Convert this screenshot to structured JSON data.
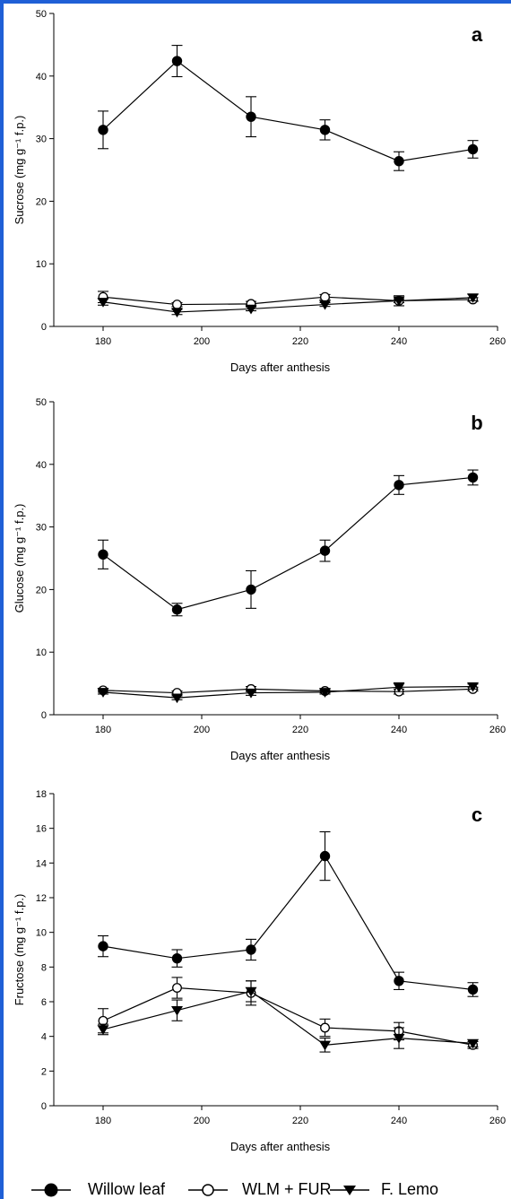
{
  "colors": {
    "frame": "#1f5fd6",
    "ink": "#000000",
    "background": "#ffffff"
  },
  "legend": [
    "Willow leaf",
    "WLM + FUR",
    "F. Lemo"
  ],
  "chart_data": [
    {
      "type": "line",
      "panel": "a",
      "xlabel": "Days after anthesis",
      "ylabel": "Sucrose (mg g⁻¹ f.p.)",
      "xlim": [
        170,
        260
      ],
      "ylim": [
        0,
        50
      ],
      "xticks": [
        180,
        200,
        220,
        240,
        260
      ],
      "yticks": [
        0,
        10,
        20,
        30,
        40,
        50
      ],
      "x": [
        180,
        195,
        210,
        225,
        240,
        255
      ],
      "series": [
        {
          "name": "Willow leaf",
          "marker": "filled-circle",
          "values": [
            31.4,
            42.4,
            33.5,
            31.4,
            26.4,
            28.3
          ],
          "errors": [
            3.0,
            2.5,
            3.2,
            1.6,
            1.5,
            1.4
          ]
        },
        {
          "name": "WLM + FUR",
          "marker": "open-circle",
          "values": [
            4.7,
            3.5,
            3.6,
            4.7,
            4.1,
            4.3
          ],
          "errors": [
            0.9,
            0.3,
            0.4,
            0.4,
            0.3,
            0.3
          ]
        },
        {
          "name": "F. Lemo",
          "marker": "filled-triangle-down",
          "values": [
            3.9,
            2.3,
            2.8,
            3.5,
            4.1,
            4.6
          ],
          "errors": [
            0.5,
            0.4,
            0.3,
            0.3,
            0.8,
            0.5
          ]
        }
      ]
    },
    {
      "type": "line",
      "panel": "b",
      "xlabel": "Days after anthesis",
      "ylabel": "Glucose (mg g⁻¹ f.p.)",
      "xlim": [
        170,
        260
      ],
      "ylim": [
        0,
        50
      ],
      "xticks": [
        180,
        200,
        220,
        240,
        260
      ],
      "yticks": [
        0,
        10,
        20,
        30,
        40,
        50
      ],
      "x": [
        180,
        195,
        210,
        225,
        240,
        255
      ],
      "series": [
        {
          "name": "Willow leaf",
          "marker": "filled-circle",
          "values": [
            25.6,
            16.8,
            20.0,
            26.2,
            36.7,
            37.9
          ],
          "errors": [
            2.3,
            1.0,
            3.0,
            1.7,
            1.5,
            1.2
          ]
        },
        {
          "name": "WLM + FUR",
          "marker": "open-circle",
          "values": [
            3.9,
            3.5,
            4.1,
            3.8,
            3.7,
            4.1
          ],
          "errors": [
            0.3,
            0.3,
            0.4,
            0.3,
            0.4,
            0.3
          ]
        },
        {
          "name": "F. Lemo",
          "marker": "filled-triangle-down",
          "values": [
            3.6,
            2.7,
            3.5,
            3.6,
            4.4,
            4.5
          ],
          "errors": [
            0.3,
            0.3,
            0.4,
            0.3,
            0.7,
            0.4
          ]
        }
      ]
    },
    {
      "type": "line",
      "panel": "c",
      "xlabel": "Days after anthesis",
      "ylabel": "Fructose (mg g⁻¹ f.p.)",
      "xlim": [
        170,
        260
      ],
      "ylim": [
        0,
        18
      ],
      "xticks": [
        180,
        200,
        220,
        240,
        260
      ],
      "yticks": [
        0,
        2,
        4,
        6,
        8,
        10,
        12,
        14,
        16,
        18
      ],
      "x": [
        180,
        195,
        210,
        225,
        240,
        255
      ],
      "series": [
        {
          "name": "Willow leaf",
          "marker": "filled-circle",
          "values": [
            9.2,
            8.5,
            9.0,
            14.4,
            7.2,
            6.7
          ],
          "errors": [
            0.6,
            0.5,
            0.6,
            1.4,
            0.5,
            0.4
          ]
        },
        {
          "name": "WLM + FUR",
          "marker": "open-circle",
          "values": [
            4.9,
            6.8,
            6.5,
            4.5,
            4.3,
            3.5
          ],
          "errors": [
            0.7,
            0.6,
            0.7,
            0.5,
            0.5,
            0.2
          ]
        },
        {
          "name": "F. Lemo",
          "marker": "filled-triangle-down",
          "values": [
            4.4,
            5.5,
            6.6,
            3.5,
            3.9,
            3.6
          ],
          "errors": [
            0.3,
            0.6,
            0.6,
            0.4,
            0.6,
            0.2
          ]
        }
      ]
    }
  ]
}
